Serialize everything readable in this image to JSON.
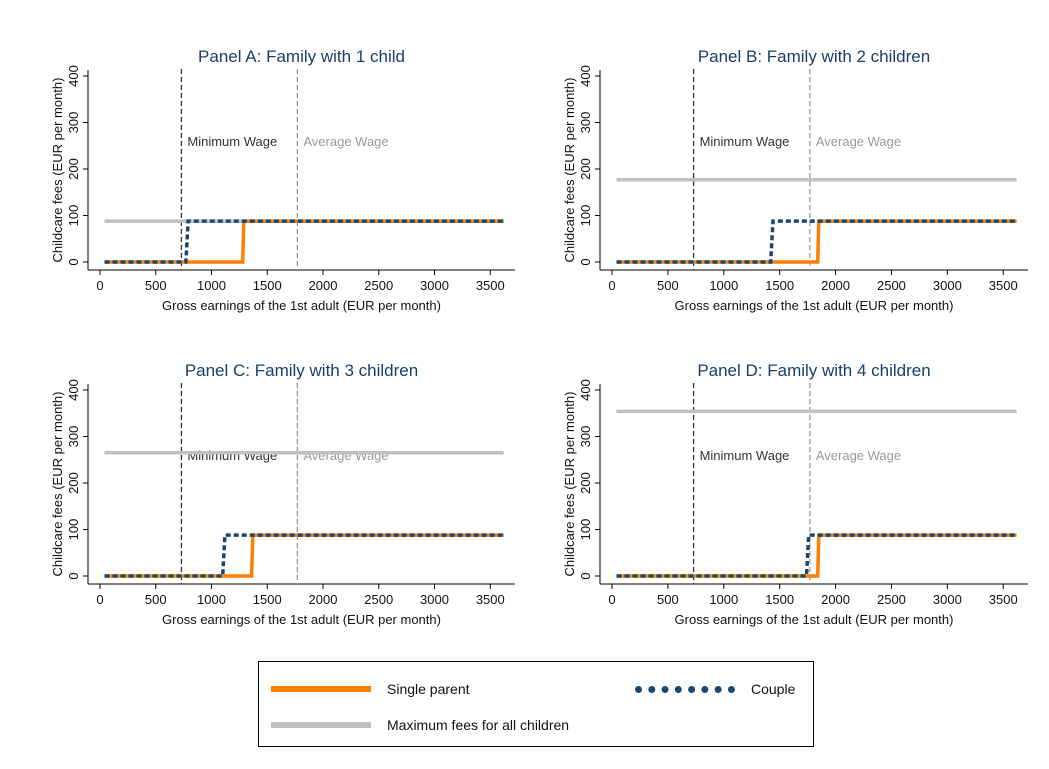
{
  "chart_data": [
    {
      "type": "line",
      "title": "Panel A: Family with 1 child",
      "xlabel": "Gross earnings of the 1st adult (EUR per month)",
      "ylabel": "Childcare fees (EUR per month)",
      "xlim": [
        0,
        3650
      ],
      "ylim": [
        0,
        400
      ],
      "xticks": [
        0,
        500,
        1000,
        1500,
        2000,
        2500,
        3000,
        3500
      ],
      "yticks": [
        0,
        100,
        200,
        300,
        400
      ],
      "grid": false,
      "annotations": [
        {
          "label": "Minimum Wage",
          "x": 730,
          "color": "#333333"
        },
        {
          "label": "Average Wage",
          "x": 1770,
          "color": "#999999"
        }
      ],
      "series": [
        {
          "name": "Maximum fees for all children",
          "color": "#c0c0c0",
          "x": [
            40,
            3620
          ],
          "y": [
            88,
            88
          ]
        },
        {
          "name": "Single parent",
          "color": "#ff8000",
          "x": [
            40,
            1280,
            1290,
            3620
          ],
          "y": [
            0,
            0,
            88,
            88
          ]
        },
        {
          "name": "Couple",
          "color": "#1a476f",
          "x": [
            40,
            770,
            790,
            3620
          ],
          "y": [
            0,
            0,
            88,
            88
          ]
        }
      ]
    },
    {
      "type": "line",
      "title": "Panel B: Family with 2 children",
      "xlabel": "Gross earnings of the 1st adult (EUR per month)",
      "ylabel": "Childcare fees (EUR per month)",
      "xlim": [
        0,
        3650
      ],
      "ylim": [
        0,
        400
      ],
      "xticks": [
        0,
        500,
        1000,
        1500,
        2000,
        2500,
        3000,
        3500
      ],
      "yticks": [
        0,
        100,
        200,
        300,
        400
      ],
      "grid": false,
      "annotations": [
        {
          "label": "Minimum Wage",
          "x": 730,
          "color": "#333333"
        },
        {
          "label": "Average Wage",
          "x": 1770,
          "color": "#999999"
        }
      ],
      "series": [
        {
          "name": "Maximum fees for all children",
          "color": "#c0c0c0",
          "x": [
            40,
            3620
          ],
          "y": [
            177,
            177
          ]
        },
        {
          "name": "Single parent",
          "color": "#ff8000",
          "x": [
            40,
            1840,
            1850,
            3620
          ],
          "y": [
            0,
            0,
            88,
            88
          ]
        },
        {
          "name": "Couple",
          "color": "#1a476f",
          "x": [
            40,
            1420,
            1440,
            3620
          ],
          "y": [
            0,
            0,
            88,
            88
          ]
        }
      ]
    },
    {
      "type": "line",
      "title": "Panel C: Family with 3 children",
      "xlabel": "Gross earnings of the 1st adult (EUR per month)",
      "ylabel": "Childcare fees (EUR per month)",
      "xlim": [
        0,
        3650
      ],
      "ylim": [
        0,
        400
      ],
      "xticks": [
        0,
        500,
        1000,
        1500,
        2000,
        2500,
        3000,
        3500
      ],
      "yticks": [
        0,
        100,
        200,
        300,
        400
      ],
      "grid": false,
      "annotations": [
        {
          "label": "Minimum Wage",
          "x": 730,
          "color": "#333333"
        },
        {
          "label": "Average Wage",
          "x": 1770,
          "color": "#999999"
        }
      ],
      "series": [
        {
          "name": "Maximum fees for all children",
          "color": "#c0c0c0",
          "x": [
            40,
            3620
          ],
          "y": [
            265,
            265
          ]
        },
        {
          "name": "Single parent",
          "color": "#ff8000",
          "x": [
            40,
            1360,
            1370,
            3620
          ],
          "y": [
            0,
            0,
            88,
            88
          ]
        },
        {
          "name": "Couple",
          "color": "#1a476f",
          "x": [
            40,
            1100,
            1120,
            3620
          ],
          "y": [
            0,
            0,
            88,
            88
          ]
        }
      ]
    },
    {
      "type": "line",
      "title": "Panel D: Family with 4 children",
      "xlabel": "Gross earnings of the 1st adult (EUR per month)",
      "ylabel": "Childcare fees (EUR per month)",
      "xlim": [
        0,
        3650
      ],
      "ylim": [
        0,
        400
      ],
      "xticks": [
        0,
        500,
        1000,
        1500,
        2000,
        2500,
        3000,
        3500
      ],
      "yticks": [
        0,
        100,
        200,
        300,
        400
      ],
      "grid": false,
      "annotations": [
        {
          "label": "Minimum Wage",
          "x": 730,
          "color": "#333333"
        },
        {
          "label": "Average Wage",
          "x": 1770,
          "color": "#999999"
        }
      ],
      "series": [
        {
          "name": "Maximum fees for all children",
          "color": "#c0c0c0",
          "x": [
            40,
            3620
          ],
          "y": [
            354,
            354
          ]
        },
        {
          "name": "Single parent",
          "color": "#ff8000",
          "x": [
            40,
            1840,
            1850,
            3620
          ],
          "y": [
            0,
            0,
            88,
            88
          ]
        },
        {
          "name": "Couple",
          "color": "#1a476f",
          "x": [
            40,
            1740,
            1760,
            3620
          ],
          "y": [
            0,
            0,
            88,
            88
          ]
        }
      ]
    }
  ],
  "legend": {
    "single_parent": "Single parent",
    "couple": "Couple",
    "max_fees": "Maximum fees for all children"
  }
}
